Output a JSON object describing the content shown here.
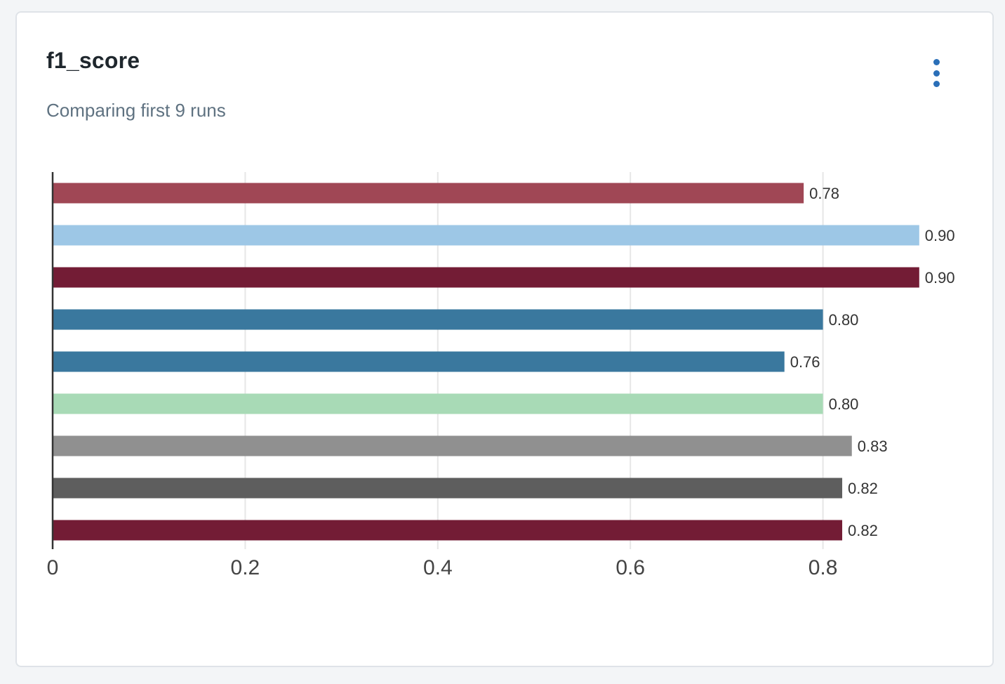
{
  "card": {
    "title": "f1_score",
    "subtitle": "Comparing first 9 runs",
    "menu_icon": "kebab-menu-icon",
    "accent_color": "#2a6fb8"
  },
  "chart_data": {
    "type": "bar",
    "orientation": "horizontal",
    "values": [
      0.78,
      0.9,
      0.9,
      0.8,
      0.76,
      0.8,
      0.83,
      0.82,
      0.82
    ],
    "value_labels": [
      "0.78",
      "0.90",
      "0.90",
      "0.80",
      "0.76",
      "0.80",
      "0.83",
      "0.82",
      "0.82"
    ],
    "colors": [
      "#a04755",
      "#9dc7e6",
      "#731c35",
      "#3a789e",
      "#3a789e",
      "#a8dab6",
      "#909090",
      "#5e5e5e",
      "#731c35"
    ],
    "xlim": [
      0,
      0.92
    ],
    "xticks": [
      0,
      0.2,
      0.4,
      0.6,
      0.8
    ],
    "xtick_labels": [
      "0",
      "0.2",
      "0.4",
      "0.6",
      "0.8"
    ],
    "grid": true,
    "legend": "none"
  }
}
